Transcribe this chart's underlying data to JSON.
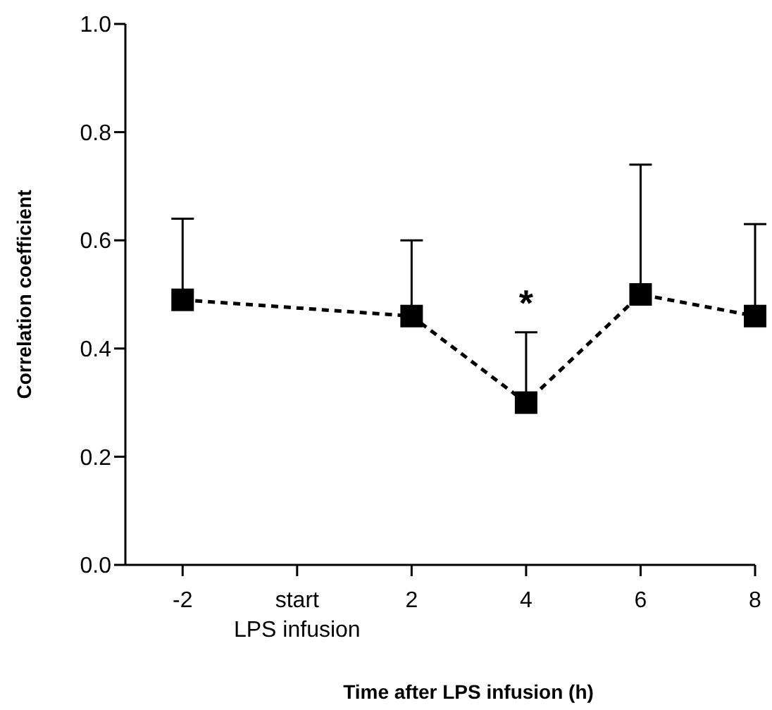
{
  "chart_data": {
    "type": "line",
    "xlabel": "Time after LPS infusion (h)",
    "ylabel": "Correlation coefficient",
    "x": [
      -2,
      2,
      4,
      6,
      8
    ],
    "series": [
      {
        "color": "#000000",
        "values": [
          0.49,
          0.46,
          0.3,
          0.5,
          0.46
        ],
        "errors": [
          [
            0.49,
            0.64
          ],
          [
            0.46,
            0.6
          ],
          [
            0.3,
            0.43
          ],
          [
            0.5,
            0.74
          ],
          [
            0.46,
            0.63
          ]
        ]
      }
    ],
    "xlim": [
      -3,
      8
    ],
    "xticks": [
      -2,
      {
        "value": 0,
        "label": "start\nLPS infusion"
      },
      2,
      4,
      6,
      8
    ],
    "ylim": [
      0,
      1
    ],
    "yticks": [
      {
        "value": 0,
        "label": "0.0"
      },
      0.2,
      0.4,
      0.6,
      0.8,
      {
        "value": 1,
        "label": "1.0"
      }
    ],
    "annotations": [
      "*"
    ],
    "marker": "square",
    "line_style": "dashed",
    "grid": false
  }
}
